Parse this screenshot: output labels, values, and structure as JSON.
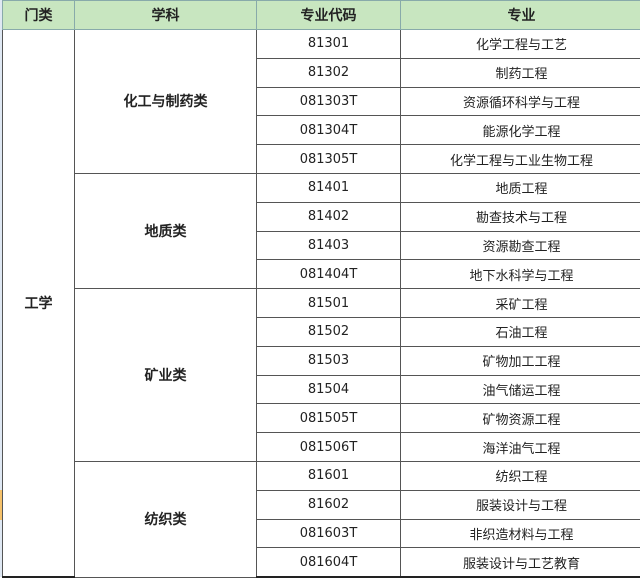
{
  "headers": [
    "门类",
    "学科",
    "专业代码",
    "专业"
  ],
  "category": "工学",
  "groups": [
    {
      "name": "化工与制药类",
      "rows": [
        {
          "code": "81301",
          "major": "化学工程与工艺"
        },
        {
          "code": "81302",
          "major": "制药工程"
        },
        {
          "code": "081303T",
          "major": "资源循环科学与工程"
        },
        {
          "code": "081304T",
          "major": "能源化学工程"
        },
        {
          "code": "081305T",
          "major": "化学工程与工业生物工程"
        }
      ]
    },
    {
      "name": "地质类",
      "rows": [
        {
          "code": "81401",
          "major": "地质工程"
        },
        {
          "code": "81402",
          "major": "勘查技术与工程"
        },
        {
          "code": "81403",
          "major": "资源勘查工程"
        },
        {
          "code": "081404T",
          "major": "地下水科学与工程"
        }
      ]
    },
    {
      "name": "矿业类",
      "rows": [
        {
          "code": "81501",
          "major": "采矿工程"
        },
        {
          "code": "81502",
          "major": "石油工程"
        },
        {
          "code": "81503",
          "major": "矿物加工工程"
        },
        {
          "code": "81504",
          "major": "油气储运工程"
        },
        {
          "code": "081505T",
          "major": "矿物资源工程"
        },
        {
          "code": "081506T",
          "major": "海洋油气工程"
        }
      ]
    },
    {
      "name": "纺织类",
      "rows": [
        {
          "code": "81601",
          "major": "纺织工程"
        },
        {
          "code": "81602",
          "major": "服装设计与工程"
        },
        {
          "code": "081603T",
          "major": "非织造材料与工程"
        },
        {
          "code": "081604T",
          "major": "服装设计与工艺教育"
        }
      ]
    }
  ],
  "colors": {
    "header_bg": "#c8e6c0",
    "border": "#555555"
  }
}
